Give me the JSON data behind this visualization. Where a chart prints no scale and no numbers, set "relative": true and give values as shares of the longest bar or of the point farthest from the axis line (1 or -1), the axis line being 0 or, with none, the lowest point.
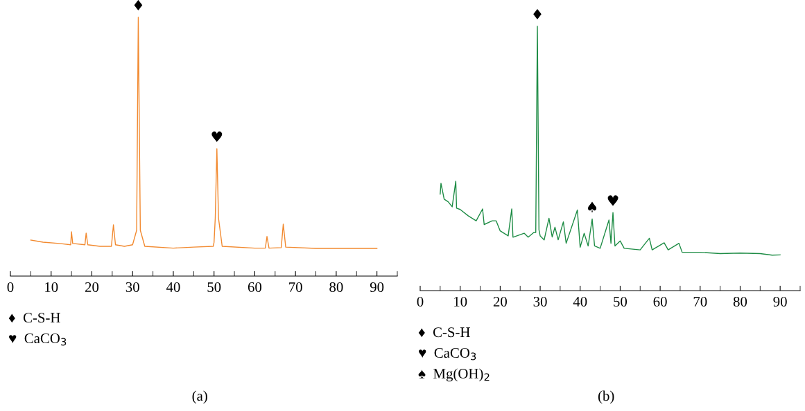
{
  "chart_data": [
    {
      "type": "line",
      "title": "(a)",
      "relative": true,
      "xlim": [
        0,
        95
      ],
      "xticks": [
        0,
        {
          "value": 5,
          "label": null
        },
        10,
        {
          "value": 15,
          "label": null
        },
        20,
        {
          "value": 25,
          "label": null
        },
        30,
        {
          "value": 35,
          "label": null
        },
        40,
        {
          "value": 45,
          "label": null
        },
        50,
        {
          "value": 55,
          "label": null
        },
        60,
        {
          "value": 65,
          "label": null
        },
        70,
        {
          "value": 75,
          "label": null
        },
        80,
        {
          "value": 85,
          "label": null
        },
        90,
        {
          "value": 95,
          "label": null
        }
      ],
      "tick_labels": "x",
      "grid": false,
      "legend": false,
      "series": [
        {
          "color": "#f28a30",
          "x": [
            5,
            8,
            12,
            14.8,
            15.0,
            15.3,
            18.3,
            18.6,
            19.0,
            22,
            24.8,
            25.3,
            25.8,
            28,
            30,
            31.0,
            31.4,
            31.9,
            33,
            40,
            45,
            49.8,
            50.0,
            50.3,
            50.7,
            51.1,
            52,
            60,
            62.6,
            63.0,
            63.5,
            66.5,
            67.0,
            67.6,
            75,
            90
          ],
          "values": [
            0.139,
            0.131,
            0.126,
            0.121,
            0.171,
            0.126,
            0.121,
            0.166,
            0.121,
            0.115,
            0.115,
            0.198,
            0.121,
            0.115,
            0.121,
            0.177,
            1.0,
            0.177,
            0.115,
            0.108,
            0.112,
            0.115,
            0.13,
            0.224,
            0.492,
            0.224,
            0.115,
            0.108,
            0.108,
            0.153,
            0.108,
            0.11,
            0.201,
            0.112,
            0.107,
            0.107
          ]
        }
      ],
      "annotations": [
        {
          "text": "♦",
          "x": 31.4,
          "y": 1.0
        },
        {
          "text": "♥",
          "x": 50.7,
          "y": 0.492
        },
        "♦  C-S-H",
        "♥  CaCO$_{3}$"
      ]
    },
    {
      "type": "line",
      "title": "(b)",
      "relative": true,
      "xlim": [
        0,
        95
      ],
      "xticks": [
        0,
        {
          "value": 5,
          "label": null
        },
        10,
        {
          "value": 15,
          "label": null
        },
        20,
        {
          "value": 25,
          "label": null
        },
        30,
        {
          "value": 35,
          "label": null
        },
        40,
        {
          "value": 45,
          "label": null
        },
        50,
        {
          "value": 55,
          "label": null
        },
        60,
        {
          "value": 65,
          "label": null
        },
        70,
        {
          "value": 75,
          "label": null
        },
        80,
        {
          "value": 85,
          "label": null
        },
        90,
        {
          "value": 95,
          "label": null
        }
      ],
      "tick_labels": "x",
      "grid": false,
      "legend": false,
      "series": [
        {
          "color": "#1e8c45",
          "x": [
            5,
            5.2,
            6,
            7,
            8,
            8.9,
            9.1,
            10,
            12,
            14,
            15.6,
            16,
            18,
            19,
            20,
            22,
            22.9,
            23.2,
            26,
            27,
            28.5,
            28.9,
            29.3,
            29.7,
            30,
            31,
            32.2,
            33,
            33.7,
            34.5,
            35.8,
            36.5,
            39.3,
            40,
            41,
            42,
            43,
            43.6,
            45,
            47.2,
            47.7,
            48.2,
            48.7,
            50,
            51,
            55,
            56.5,
            57.3,
            58,
            61,
            62,
            64.7,
            65.5,
            70,
            75,
            80,
            85,
            88,
            90
          ],
          "values": [
            0.365,
            0.406,
            0.346,
            0.336,
            0.317,
            0.414,
            0.312,
            0.307,
            0.283,
            0.264,
            0.309,
            0.25,
            0.264,
            0.264,
            0.226,
            0.207,
            0.309,
            0.202,
            0.217,
            0.202,
            0.221,
            0.22,
            1.0,
            0.23,
            0.207,
            0.192,
            0.274,
            0.203,
            0.24,
            0.192,
            0.26,
            0.179,
            0.305,
            0.164,
            0.217,
            0.169,
            0.271,
            0.169,
            0.16,
            0.267,
            0.179,
            0.295,
            0.169,
            0.188,
            0.16,
            0.154,
            0.183,
            0.198,
            0.154,
            0.181,
            0.154,
            0.179,
            0.145,
            0.145,
            0.14,
            0.142,
            0.14,
            0.134,
            0.135
          ]
        }
      ],
      "annotations": [
        {
          "text": "♦",
          "x": 29.3,
          "y": 1.0
        },
        {
          "text": "♥",
          "x": 48.2,
          "y": 0.295
        },
        {
          "text": "♠",
          "x": 43,
          "y": 0.271
        },
        "♦  C-S-H",
        "♥  CaCO$_{3}$",
        "♠  Mg(OH)$_{2}$"
      ]
    }
  ]
}
